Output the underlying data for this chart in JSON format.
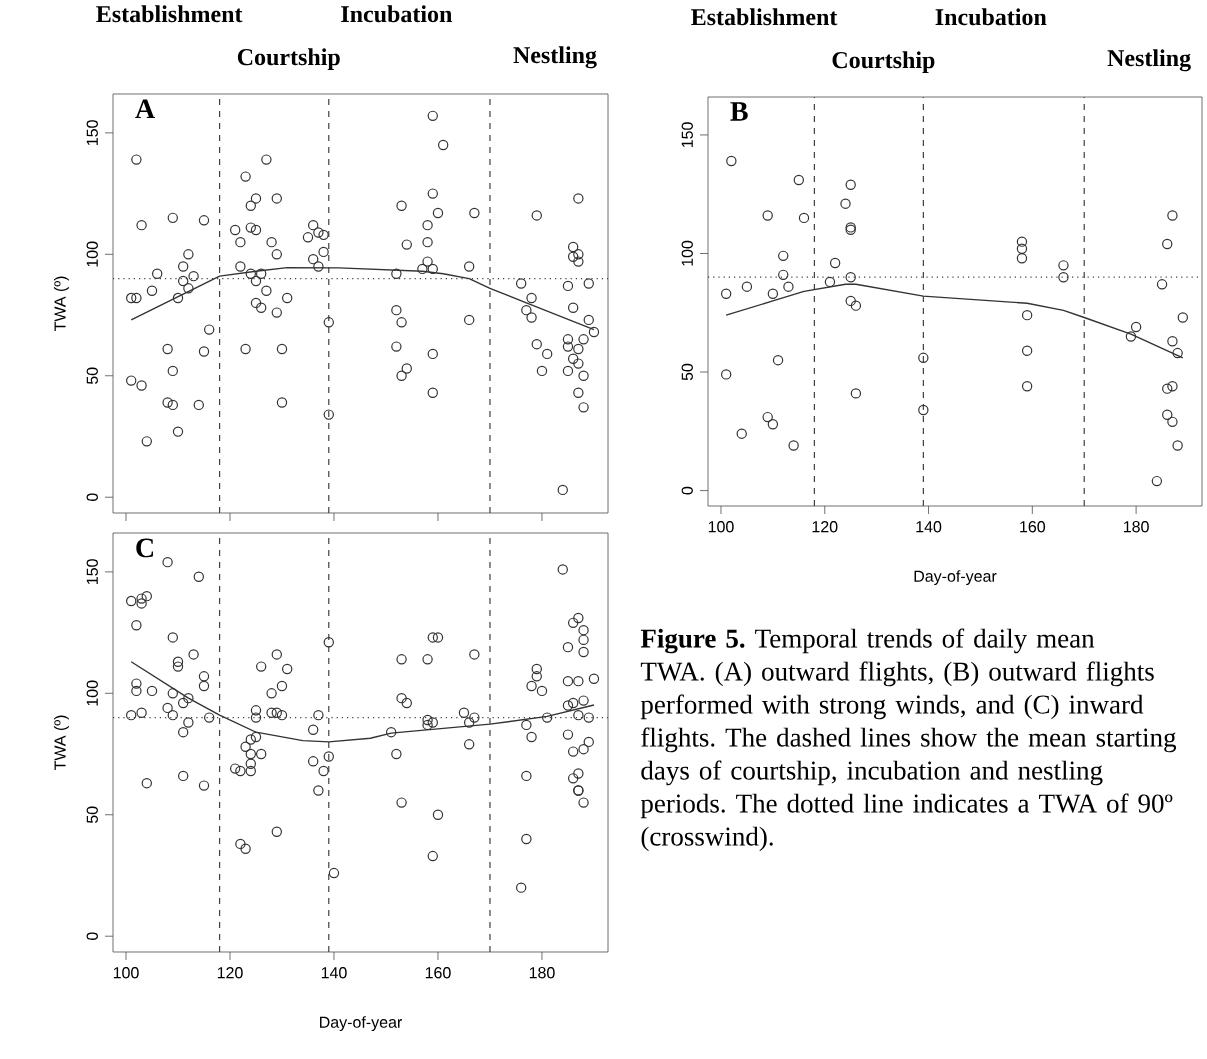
{
  "chart_data": [
    {
      "type": "scatter",
      "title": "A",
      "ylabel": "TWA (º)",
      "xlim": [
        97.5,
        192.7
      ],
      "ylim": [
        -6.5,
        166
      ],
      "xticks": [
        100,
        120,
        140,
        160,
        180
      ],
      "yticks": [
        0,
        50,
        100,
        150
      ],
      "tick_labels": "y",
      "annotations": [
        "Establishment",
        "Courtship",
        "Incubation",
        "Nestling"
      ],
      "ref_lines": [
        {
          "axis": "x",
          "value": 118,
          "line_style": "dashed"
        },
        {
          "axis": "x",
          "value": 139,
          "line_style": "dashed"
        },
        {
          "axis": "x",
          "value": 170,
          "line_style": "dashed"
        },
        {
          "axis": "y",
          "value": 90,
          "line_style": "dotted"
        }
      ],
      "series": [
        {
          "marker": "circle",
          "color": "#333333",
          "x": [
            102,
            103,
            109,
            115,
            112,
            111,
            106,
            113,
            111,
            112,
            105,
            101,
            102,
            110,
            116,
            108,
            115,
            109,
            101,
            103,
            108,
            109,
            114,
            110,
            104,
            127,
            123,
            125,
            124,
            129,
            121,
            124,
            125,
            122,
            128,
            129,
            122,
            124,
            126,
            125,
            127,
            131,
            125,
            126,
            129,
            123,
            130,
            130,
            136,
            135,
            137,
            138,
            138,
            136,
            137,
            139,
            139,
            159,
            161,
            159,
            153,
            160,
            167,
            158,
            154,
            158,
            158,
            157,
            159,
            152,
            166,
            152,
            153,
            166,
            152,
            159,
            154,
            153,
            159,
            187,
            179,
            186,
            187,
            186,
            187,
            176,
            185,
            189,
            178,
            177,
            186,
            178,
            189,
            190,
            185,
            188,
            179,
            185,
            187,
            181,
            186,
            187,
            180,
            185,
            188,
            187,
            188,
            184
          ],
          "values": [
            139,
            112,
            115,
            114,
            100,
            95,
            92,
            91,
            89,
            86,
            85,
            82,
            82,
            82,
            69,
            61,
            60,
            52,
            48,
            46,
            39,
            38,
            38,
            27,
            23,
            139,
            132,
            123,
            120,
            123,
            110,
            111,
            110,
            105,
            105,
            100,
            95,
            92,
            92,
            89,
            85,
            82,
            80,
            78,
            76,
            61,
            61,
            39,
            112,
            107,
            109,
            108,
            101,
            98,
            95,
            72,
            34,
            157,
            145,
            125,
            120,
            117,
            117,
            112,
            104,
            105,
            97,
            94,
            94,
            92,
            95,
            77,
            72,
            73,
            62,
            59,
            53,
            50,
            43,
            123,
            116,
            103,
            100,
            99,
            97,
            88,
            87,
            88,
            82,
            77,
            78,
            74,
            73,
            68,
            65,
            65,
            63,
            62,
            61,
            59,
            57,
            55,
            52,
            52,
            50,
            43,
            37,
            3
          ]
        },
        {
          "type": "line",
          "marker": "none",
          "color": "#333333",
          "x": [
            101,
            118,
            125,
            131,
            141,
            157,
            161,
            166,
            170,
            177,
            190
          ],
          "values": [
            73,
            91,
            93,
            94.5,
            94.4,
            93,
            92,
            90,
            86,
            80,
            69
          ]
        }
      ]
    },
    {
      "type": "scatter",
      "title": "B",
      "xlabel": "Day-of-year",
      "xlim": [
        97.5,
        192.7
      ],
      "ylim": [
        -6.5,
        166
      ],
      "xticks": [
        100,
        120,
        140,
        160,
        180
      ],
      "yticks": [
        0,
        50,
        100,
        150
      ],
      "annotations": [
        "Establishment",
        "Courtship",
        "Incubation",
        "Nestling",
        "**Figure 5.** Temporal trends of daily mean TWA. (A) outward flights, (B) outward flights performed with strong winds, and (C) inward flights. The dashed lines show the mean starting days of courtship, incubation and nestling periods. The dotted line indicates a TWA of 90º (crosswind)."
      ],
      "ref_lines": [
        {
          "axis": "x",
          "value": 118,
          "line_style": "dashed"
        },
        {
          "axis": "x",
          "value": 139,
          "line_style": "dashed"
        },
        {
          "axis": "x",
          "value": 170,
          "line_style": "dashed"
        },
        {
          "axis": "y",
          "value": 90,
          "line_style": "dotted"
        }
      ],
      "series": [
        {
          "marker": "circle",
          "color": "#333333",
          "x": [
            102,
            115,
            109,
            116,
            112,
            112,
            105,
            113,
            101,
            110,
            111,
            101,
            109,
            110,
            104,
            114,
            125,
            124,
            125,
            125,
            122,
            121,
            125,
            125,
            126,
            126,
            139,
            139,
            158,
            158,
            158,
            166,
            166,
            159,
            159,
            159,
            187,
            186,
            185,
            189,
            180,
            179,
            187,
            188,
            186,
            187,
            186,
            187,
            188,
            184
          ],
          "values": [
            139,
            131,
            116,
            115,
            99,
            91,
            86,
            86,
            83,
            83,
            55,
            49,
            31,
            28,
            24,
            19,
            129,
            121,
            110,
            111,
            96,
            88,
            90,
            80,
            78,
            41,
            56,
            34,
            105,
            102,
            98,
            95,
            90,
            74,
            59,
            44,
            116,
            104,
            87,
            73,
            69,
            65,
            63,
            58,
            43,
            44,
            32,
            29,
            19,
            4
          ]
        },
        {
          "type": "line",
          "marker": "none",
          "color": "#333333",
          "x": [
            101,
            110,
            116,
            124,
            126,
            139,
            159,
            166,
            170,
            179,
            189
          ],
          "values": [
            74,
            80,
            84,
            87,
            87,
            82,
            79,
            76,
            73,
            66,
            56
          ]
        }
      ]
    },
    {
      "type": "scatter",
      "title": "C",
      "xlabel": "Day-of-year",
      "ylabel": "TWA (º)",
      "xlim": [
        97.5,
        192.7
      ],
      "ylim": [
        -6.5,
        166
      ],
      "xticks": [
        100,
        120,
        140,
        160,
        180
      ],
      "yticks": [
        0,
        50,
        100,
        150
      ],
      "ref_lines": [
        {
          "axis": "x",
          "value": 118,
          "line_style": "dashed"
        },
        {
          "axis": "x",
          "value": 139,
          "line_style": "dashed"
        },
        {
          "axis": "x",
          "value": 170,
          "line_style": "dashed"
        },
        {
          "axis": "y",
          "value": 90,
          "line_style": "dotted"
        }
      ],
      "series": [
        {
          "marker": "circle",
          "color": "#333333",
          "x": [
            108,
            114,
            101,
            103,
            104,
            103,
            102,
            109,
            113,
            110,
            110,
            115,
            115,
            102,
            102,
            105,
            109,
            112,
            111,
            108,
            101,
            103,
            109,
            116,
            112,
            111,
            104,
            111,
            115,
            129,
            126,
            131,
            130,
            128,
            125,
            125,
            128,
            129,
            130,
            125,
            124,
            123,
            124,
            126,
            124,
            121,
            122,
            124,
            129,
            122,
            123,
            137,
            136,
            139,
            136,
            139,
            138,
            137,
            140,
            153,
            158,
            159,
            160,
            167,
            153,
            154,
            158,
            158,
            159,
            165,
            167,
            166,
            151,
            152,
            166,
            153,
            160,
            159,
            184,
            187,
            186,
            188,
            188,
            185,
            188,
            179,
            179,
            178,
            180,
            185,
            187,
            190,
            185,
            186,
            188,
            187,
            189,
            181,
            177,
            178,
            185,
            189,
            188,
            186,
            177,
            187,
            186,
            187,
            187,
            188,
            177,
            176
          ],
          "values": [
            154,
            148,
            138,
            139,
            140,
            137,
            128,
            123,
            116,
            113,
            111,
            107,
            103,
            104,
            101,
            101,
            100,
            98,
            96,
            94,
            91,
            92,
            91,
            90,
            88,
            84,
            63,
            66,
            62,
            116,
            111,
            110,
            103,
            100,
            93,
            90,
            92,
            92,
            91,
            82,
            81,
            78,
            75,
            75,
            71,
            69,
            68,
            68,
            43,
            38,
            36,
            91,
            85,
            121,
            72,
            74,
            68,
            60,
            26,
            114,
            114,
            123,
            123,
            116,
            98,
            96,
            89,
            87,
            88,
            92,
            90,
            88,
            84,
            75,
            79,
            55,
            50,
            33,
            151,
            131,
            129,
            126,
            122,
            119,
            117,
            110,
            107,
            103,
            101,
            105,
            105,
            106,
            95,
            96,
            97,
            91,
            90,
            90,
            87,
            82,
            83,
            80,
            77,
            76,
            66,
            67,
            65,
            60,
            60,
            55,
            40,
            20
          ]
        },
        {
          "type": "line",
          "marker": "none",
          "color": "#333333",
          "x": [
            101,
            112,
            118,
            125,
            134,
            139,
            147,
            151,
            170,
            181,
            190
          ],
          "values": [
            113,
            98,
            91,
            84,
            80.5,
            80,
            81.5,
            83.6,
            87.3,
            90.5,
            95.2
          ]
        }
      ]
    }
  ]
}
